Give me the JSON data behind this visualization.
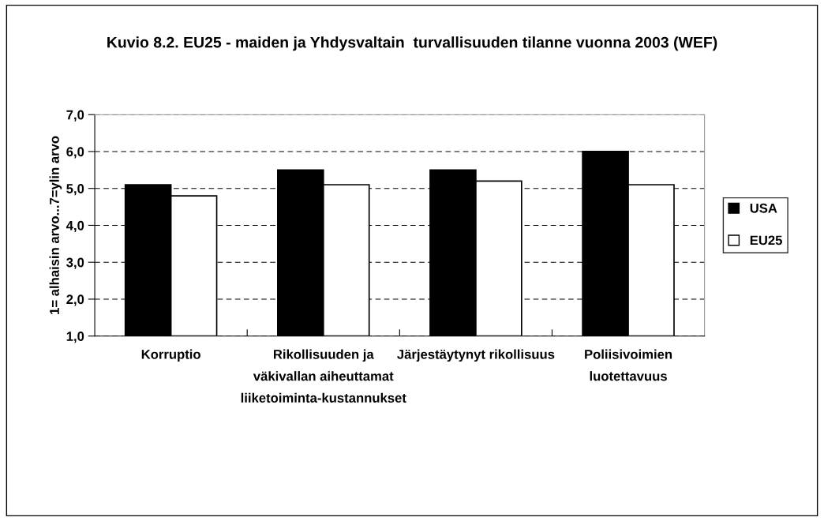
{
  "chart_data": {
    "type": "bar",
    "title": "Kuvio 8.2. EU25 - maiden ja Yhdysvaltain  turvallisuuden tilanne vuonna 2003 (WEF)",
    "ylabel": "1= alhaisin arvo...7=ylin arvo",
    "categories": [
      "Korruptio",
      "Rikollisuuden ja väkivallan aiheuttamat liiketoiminta-kustannukset",
      "Järjestäytynyt rikollisuus",
      "Poliisivoimien luotettavuus"
    ],
    "series": [
      {
        "name": "USA",
        "color": "#000000",
        "values": [
          5.1,
          5.5,
          5.5,
          6.0
        ]
      },
      {
        "name": "EU25",
        "color": "#ffffff",
        "values": [
          4.8,
          5.1,
          5.2,
          5.1
        ]
      }
    ],
    "ylim": [
      1,
      7
    ],
    "yticks": [
      {
        "value": 1,
        "label": "1,0"
      },
      {
        "value": 2,
        "label": "2,0"
      },
      {
        "value": 3,
        "label": "3,0"
      },
      {
        "value": 4,
        "label": "4,0"
      },
      {
        "value": 5,
        "label": "5,0"
      },
      {
        "value": 6,
        "label": "6,0"
      },
      {
        "value": 7,
        "label": "7,0"
      }
    ],
    "grid": "y",
    "legend": "right",
    "line_style": "dashed"
  }
}
